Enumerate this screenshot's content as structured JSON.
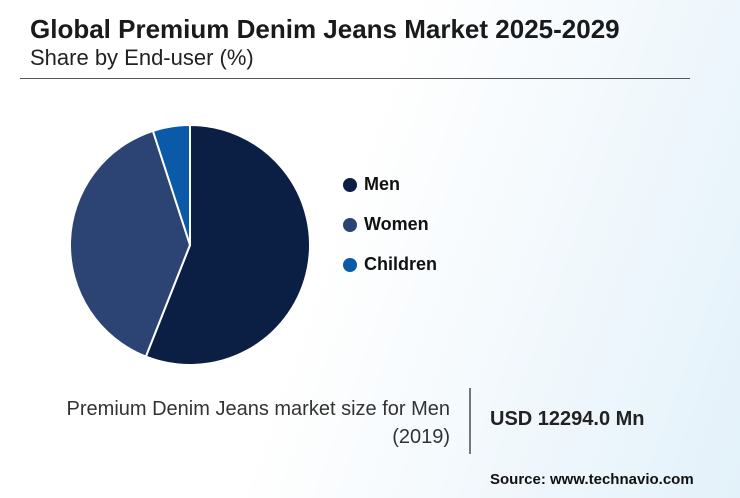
{
  "chart_data": {
    "type": "pie",
    "title": "Global Premium Denim Jeans Market 2025-2029",
    "subtitle": "Share by End-user (%)",
    "categories": [
      "Men",
      "Women",
      "Children"
    ],
    "values": [
      56,
      39,
      5
    ],
    "colors": [
      "#0b1f45",
      "#2b4474",
      "#0a5aa8"
    ],
    "footer_label": "Premium Denim Jeans market size for Men (2019)",
    "footer_value": "USD 12294.0 Mn",
    "source": "Source: www.technavio.com"
  }
}
